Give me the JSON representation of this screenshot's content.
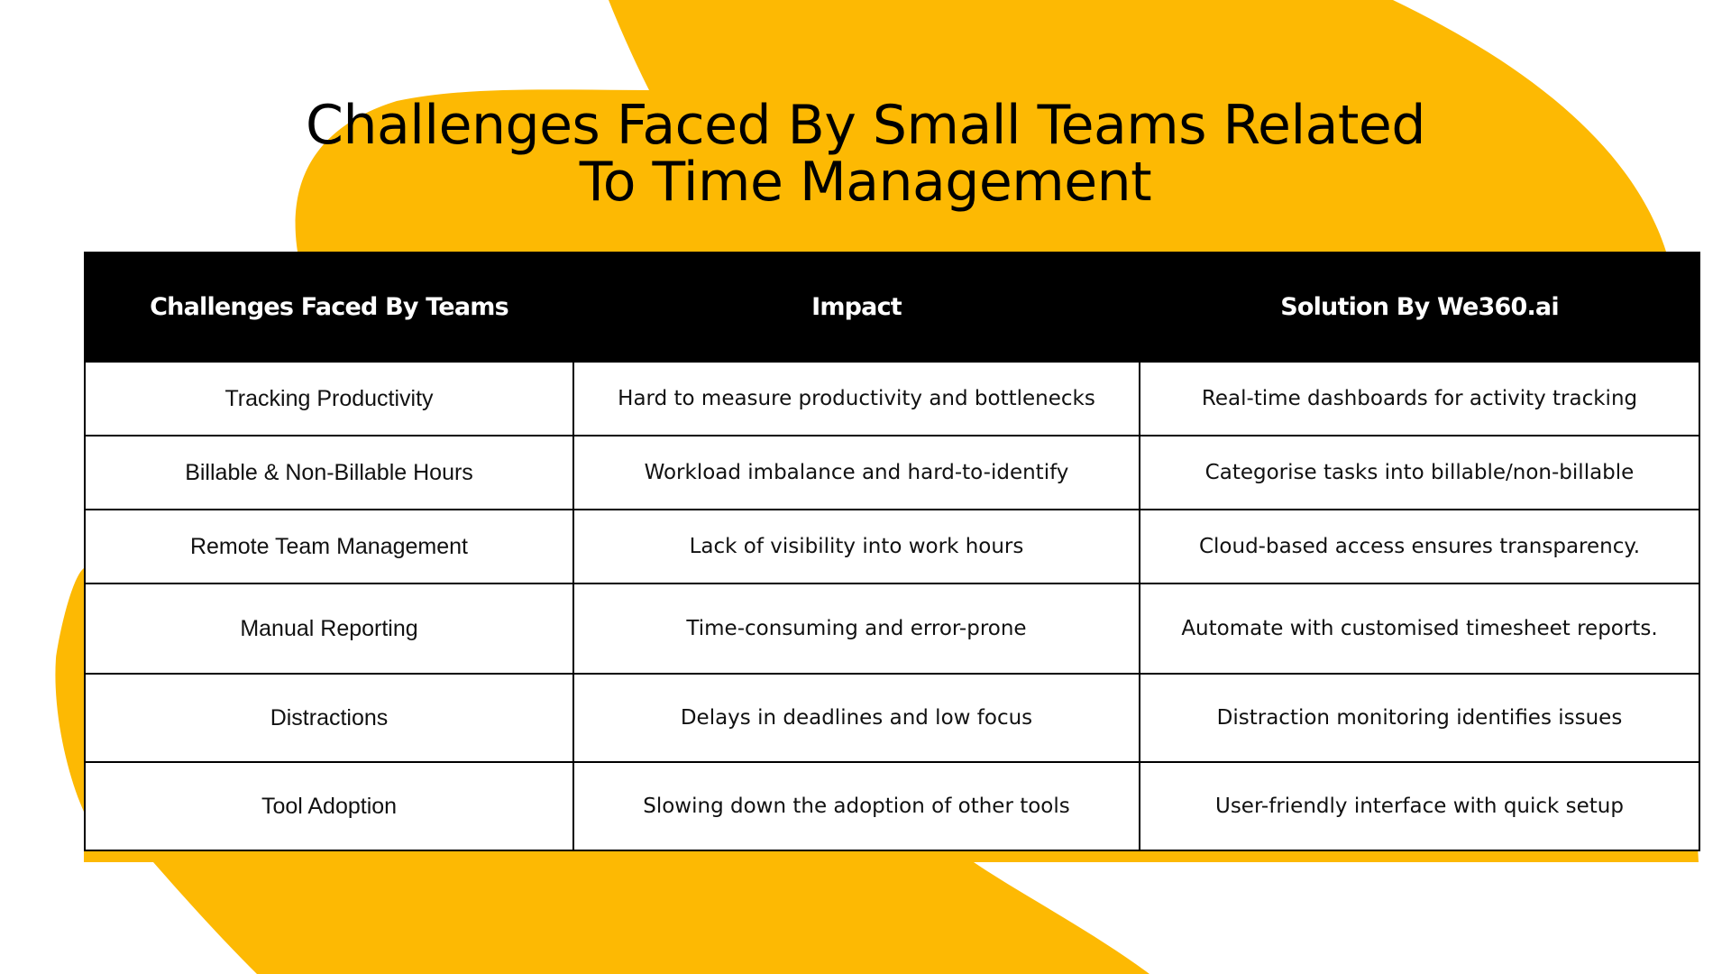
{
  "title": {
    "line1": "Challenges Faced By Small Teams Related",
    "line2": "To Time Management"
  },
  "table": {
    "headers": [
      "Challenges Faced By Teams",
      "Impact",
      "Solution By We360.ai"
    ],
    "rows": [
      [
        "Tracking Productivity",
        "Hard to measure productivity and bottlenecks",
        "Real-time dashboards for activity tracking"
      ],
      [
        "Billable & Non-Billable Hours",
        "Workload imbalance and hard-to-identify",
        "Categorise tasks into billable/non-billable"
      ],
      [
        "Remote Team Management",
        "Lack of visibility into work hours",
        "Cloud-based access ensures transparency."
      ],
      [
        "Manual Reporting",
        "Time-consuming and error-prone",
        "Automate with customised timesheet reports."
      ],
      [
        "Distractions",
        "Delays in deadlines and low focus",
        "Distraction monitoring identifies issues"
      ],
      [
        "Tool Adoption",
        "Slowing down the adoption of other tools",
        "User-friendly interface with quick setup"
      ]
    ]
  },
  "colors": {
    "accent": "#FDB903",
    "header_bg": "#000000",
    "header_text": "#FFFFFF",
    "background": "#FFFFFF"
  }
}
